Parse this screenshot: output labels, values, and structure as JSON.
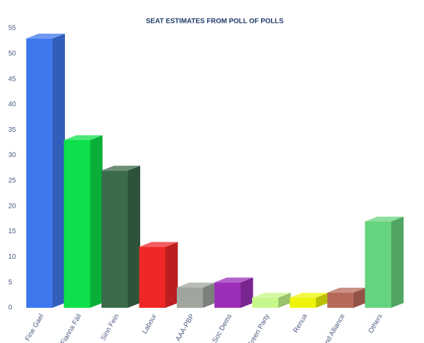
{
  "chart_data": {
    "type": "bar3d",
    "title": "SEAT ESTIMATES FROM POLL OF POLLS",
    "categories": [
      "Fine Gael",
      "Fianna Fáil",
      "Sinn Fein",
      "Labour",
      "AAA-PBP",
      "Soc Dems",
      "Green Party",
      "Renua",
      "Ind Alliance",
      "Others"
    ],
    "values": [
      53,
      33,
      27,
      12,
      4,
      5,
      2,
      2,
      3,
      17
    ],
    "colors": [
      "#3f78ee",
      "#0de04a",
      "#3a6b4a",
      "#f02727",
      "#a0a69e",
      "#9b2fb8",
      "#c6f78a",
      "#eef50a",
      "#b86a5a",
      "#66d47e"
    ],
    "ylim": [
      0,
      55
    ],
    "yticks": [
      0,
      5,
      10,
      15,
      20,
      25,
      30,
      35,
      40,
      45,
      50,
      55
    ]
  }
}
